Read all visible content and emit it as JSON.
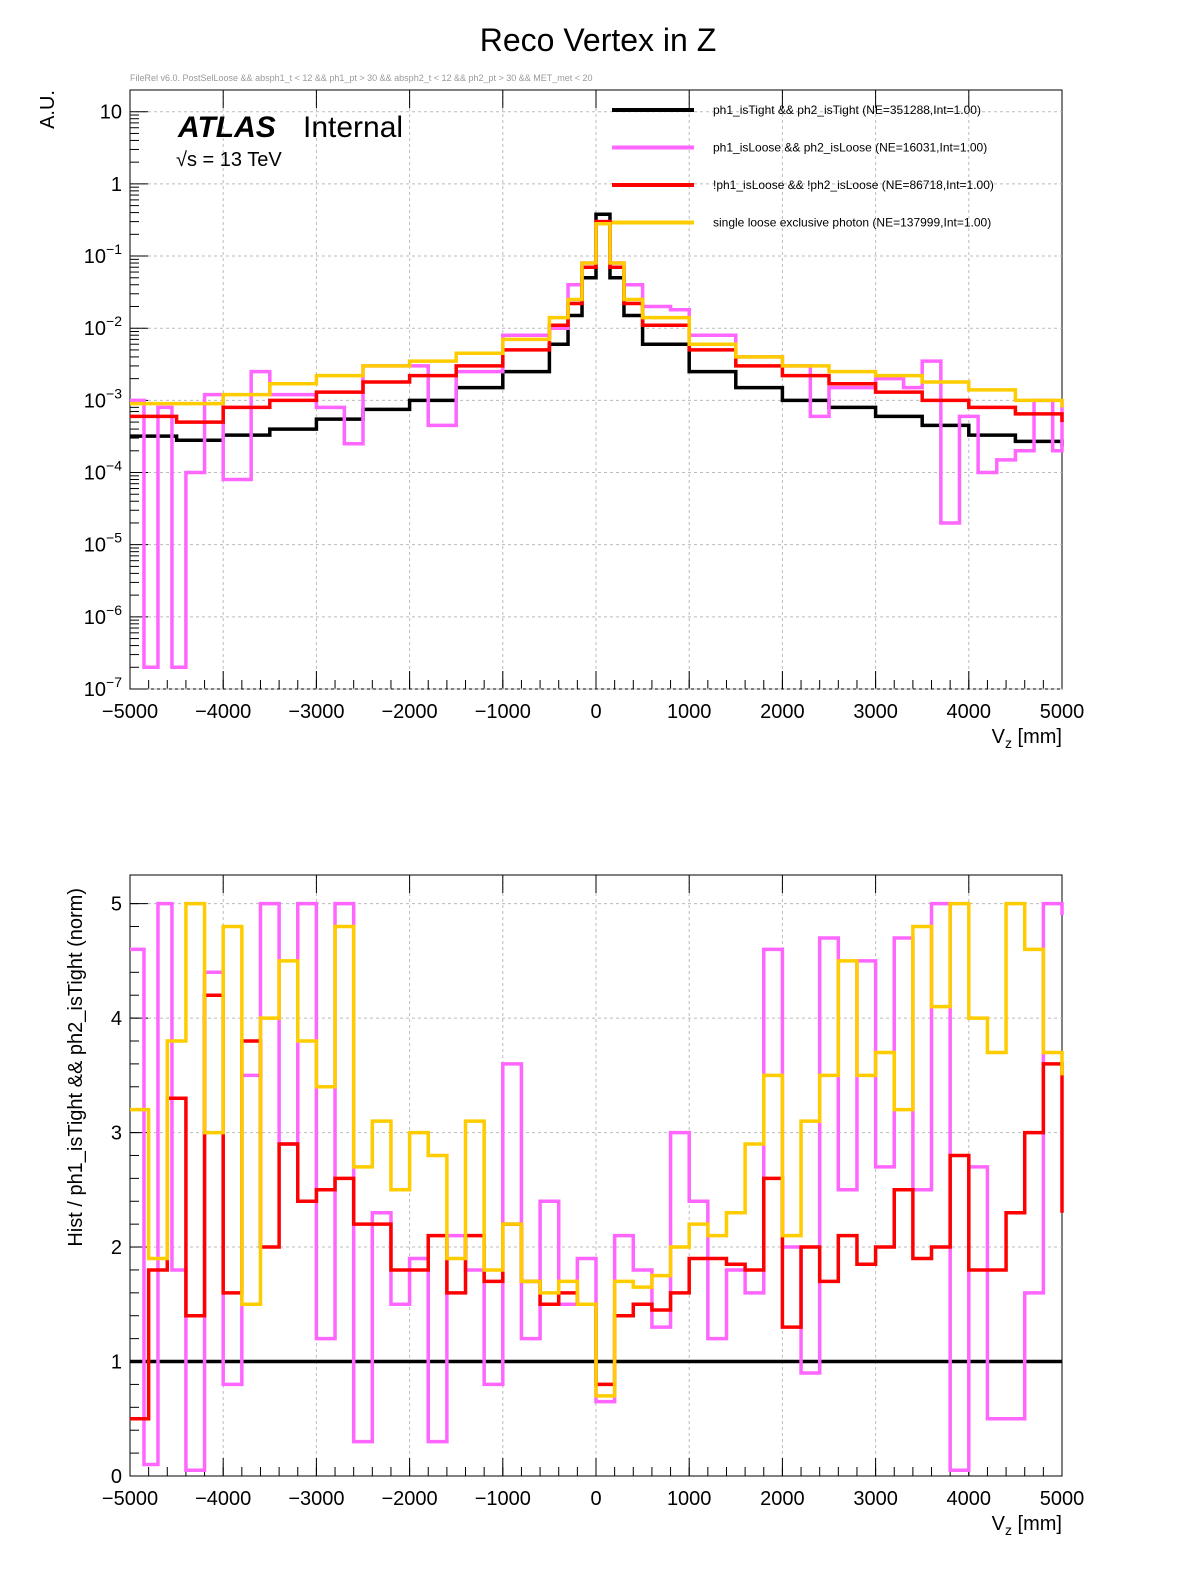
{
  "title": "Reco Vertex in Z",
  "subtitle": "FileRel v6.0. PostSelLoose && absph1_t < 12 && ph1_pt > 30 && absph2_t < 12 && ph2_pt > 30 && MET_met < 20",
  "atlas_label": "ATLAS",
  "atlas_sub": "Internal",
  "energy_label": "√s = 13 TeV",
  "colors": {
    "tight": "#000000",
    "loose": "#ff66ff",
    "notloose": "#ff0000",
    "single": "#ffcc00"
  },
  "chart_data": [
    {
      "type": "line",
      "title": "Reco Vertex in Z",
      "xlabel": "V_z [mm]",
      "ylabel": "A.U.",
      "yscale": "log",
      "xlim": [
        -5000,
        5000
      ],
      "ylim": [
        1e-07,
        20
      ],
      "grid": true,
      "x_ticks": [
        "−5000",
        "−4000",
        "−3000",
        "−2000",
        "−1000",
        "0",
        "1000",
        "2000",
        "3000",
        "4000",
        "5000"
      ],
      "y_ticks": [
        "10^-7",
        "10^-6",
        "10^-5",
        "10^-4",
        "10^-3",
        "10^-2",
        "10^-1",
        "1",
        "10"
      ],
      "legend": "top-right",
      "legend_entries": [
        "ph1_isTight && ph2_isTight (NE=351288,Int=1.00)",
        "ph1_isLoose && ph2_isLoose (NE=16031,Int=1.00)",
        "!ph1_isLoose && !ph2_isLoose (NE=86718,Int=1.00)",
        "single loose exclusive photon (NE=137999,Int=1.00)"
      ],
      "series": [
        {
          "name": "ph1_isTight && ph2_isTight",
          "color": "#000000",
          "x": [
            -5000,
            -4500,
            -4000,
            -3500,
            -3000,
            -2500,
            -2000,
            -1500,
            -1000,
            -500,
            -300,
            -150,
            0,
            150,
            300,
            500,
            1000,
            1500,
            2000,
            2500,
            3000,
            3500,
            4000,
            4500,
            5000
          ],
          "y": [
            0.00032,
            0.00028,
            0.00033,
            0.0004,
            0.00055,
            0.00075,
            0.001,
            0.0015,
            0.0025,
            0.006,
            0.015,
            0.05,
            0.38,
            0.05,
            0.015,
            0.006,
            0.0025,
            0.0015,
            0.001,
            0.0008,
            0.0006,
            0.00045,
            0.00033,
            0.00027,
            0.00023
          ]
        },
        {
          "name": "ph1_isLoose && ph2_isLoose",
          "color": "#ff66ff",
          "x": [
            -5000,
            -4850,
            -4700,
            -4550,
            -4400,
            -4200,
            -4000,
            -3700,
            -3500,
            -3000,
            -2700,
            -2500,
            -2000,
            -1800,
            -1500,
            -1000,
            -500,
            -300,
            -150,
            0,
            150,
            300,
            500,
            800,
            1000,
            1500,
            2000,
            2300,
            2500,
            3000,
            3300,
            3500,
            3700,
            3900,
            4100,
            4300,
            4500,
            4700,
            4900,
            5000
          ],
          "y": [
            0.001,
            2e-07,
            0.0008,
            2e-07,
            0.0001,
            0.0012,
            8e-05,
            0.0025,
            0.0012,
            0.0008,
            0.00025,
            0.003,
            0.003,
            0.00045,
            0.0025,
            0.008,
            0.01,
            0.04,
            0.08,
            0.3,
            0.08,
            0.04,
            0.02,
            0.018,
            0.008,
            0.004,
            0.003,
            0.0006,
            0.0015,
            0.002,
            0.0015,
            0.0035,
            2e-05,
            0.0006,
            0.0001,
            0.00015,
            0.0002,
            0.001,
            0.0002,
            0.001
          ]
        },
        {
          "name": "!ph1_isLoose && !ph2_isLoose",
          "color": "#ff0000",
          "x": [
            -5000,
            -4500,
            -4000,
            -3500,
            -3000,
            -2500,
            -2000,
            -1500,
            -1000,
            -500,
            -300,
            -150,
            0,
            150,
            300,
            500,
            1000,
            1500,
            2000,
            2500,
            3000,
            3500,
            4000,
            4500,
            5000
          ],
          "y": [
            0.0006,
            0.0005,
            0.0008,
            0.001,
            0.0013,
            0.0018,
            0.0022,
            0.003,
            0.005,
            0.011,
            0.022,
            0.07,
            0.3,
            0.07,
            0.022,
            0.011,
            0.005,
            0.003,
            0.0022,
            0.0017,
            0.0013,
            0.001,
            0.0008,
            0.00065,
            0.0005
          ]
        },
        {
          "name": "single loose exclusive photon",
          "color": "#ffcc00",
          "x": [
            -5000,
            -4500,
            -4000,
            -3500,
            -3000,
            -2500,
            -2000,
            -1500,
            -1000,
            -500,
            -300,
            -150,
            0,
            150,
            300,
            500,
            1000,
            1500,
            2000,
            2500,
            3000,
            3500,
            4000,
            4500,
            5000
          ],
          "y": [
            0.0009,
            0.0009,
            0.0012,
            0.0017,
            0.0022,
            0.003,
            0.0035,
            0.0045,
            0.007,
            0.014,
            0.025,
            0.08,
            0.28,
            0.08,
            0.025,
            0.014,
            0.006,
            0.004,
            0.003,
            0.0025,
            0.0022,
            0.0018,
            0.0014,
            0.001,
            0.0008
          ]
        }
      ]
    },
    {
      "type": "line",
      "title": "",
      "xlabel": "V_z [mm]",
      "ylabel": "Hist / ph1_isTight && ph2_isTight (norm)",
      "yscale": "linear",
      "xlim": [
        -5000,
        5000
      ],
      "ylim": [
        0,
        5.25
      ],
      "grid": true,
      "x_ticks": [
        "−5000",
        "−4000",
        "−3000",
        "−2000",
        "−1000",
        "0",
        "1000",
        "2000",
        "3000",
        "4000",
        "5000"
      ],
      "y_ticks": [
        "0",
        "1",
        "2",
        "3",
        "4",
        "5"
      ],
      "series": [
        {
          "name": "ph1_isTight && ph2_isTight",
          "color": "#000000",
          "x": [
            -5000,
            5000
          ],
          "y": [
            1,
            1
          ]
        },
        {
          "name": "ph1_isLoose && ph2_isLoose",
          "color": "#ff66ff",
          "x": [
            -5000,
            -4850,
            -4700,
            -4550,
            -4400,
            -4200,
            -4000,
            -3800,
            -3600,
            -3400,
            -3200,
            -3000,
            -2800,
            -2600,
            -2400,
            -2200,
            -2000,
            -1800,
            -1600,
            -1400,
            -1200,
            -1000,
            -800,
            -600,
            -400,
            -200,
            0,
            200,
            400,
            600,
            800,
            1000,
            1200,
            1400,
            1600,
            1800,
            2000,
            2200,
            2400,
            2600,
            2800,
            3000,
            3200,
            3400,
            3600,
            3800,
            4000,
            4200,
            4400,
            4600,
            4800,
            5000
          ],
          "y": [
            4.6,
            0.1,
            5,
            1.8,
            0.05,
            4.4,
            0.8,
            3.5,
            5,
            2.9,
            5,
            1.2,
            5,
            0.3,
            2.3,
            1.5,
            1.9,
            0.3,
            2.1,
            1.8,
            0.8,
            3.6,
            1.2,
            2.4,
            1.5,
            1.9,
            0.65,
            2.1,
            1.8,
            1.3,
            3,
            2.4,
            1.2,
            1.8,
            1.6,
            4.6,
            2,
            0.9,
            4.7,
            2.5,
            4.5,
            2.7,
            4.7,
            2.5,
            5,
            0.05,
            2.7,
            0.5,
            0.5,
            1.6,
            5,
            4.9
          ]
        },
        {
          "name": "!ph1_isLoose && !ph2_isLoose",
          "color": "#ff0000",
          "x": [
            -5000,
            -4800,
            -4600,
            -4400,
            -4200,
            -4000,
            -3800,
            -3600,
            -3400,
            -3200,
            -3000,
            -2800,
            -2600,
            -2400,
            -2200,
            -2000,
            -1800,
            -1600,
            -1400,
            -1200,
            -1000,
            -800,
            -600,
            -400,
            -200,
            0,
            200,
            400,
            600,
            800,
            1000,
            1200,
            1400,
            1600,
            1800,
            2000,
            2200,
            2400,
            2600,
            2800,
            3000,
            3200,
            3400,
            3600,
            3800,
            4000,
            4200,
            4400,
            4600,
            4800,
            5000
          ],
          "y": [
            0.5,
            1.8,
            3.3,
            1.4,
            4.2,
            1.6,
            3.8,
            2,
            2.9,
            2.4,
            2.5,
            2.6,
            2.2,
            2.2,
            1.8,
            1.8,
            2.1,
            1.6,
            2.1,
            1.7,
            2.2,
            1.7,
            1.5,
            1.6,
            1.5,
            0.8,
            1.4,
            1.5,
            1.45,
            1.6,
            1.9,
            1.9,
            1.85,
            1.8,
            2.6,
            1.3,
            2,
            1.7,
            2.1,
            1.85,
            2,
            2.5,
            1.9,
            2,
            2.8,
            1.8,
            1.8,
            2.3,
            3,
            3.6,
            2.3
          ]
        },
        {
          "name": "single loose exclusive photon",
          "color": "#ffcc00",
          "x": [
            -5000,
            -4800,
            -4600,
            -4400,
            -4200,
            -4000,
            -3800,
            -3600,
            -3400,
            -3200,
            -3000,
            -2800,
            -2600,
            -2400,
            -2200,
            -2000,
            -1800,
            -1600,
            -1400,
            -1200,
            -1000,
            -800,
            -600,
            -400,
            -200,
            0,
            200,
            400,
            600,
            800,
            1000,
            1200,
            1400,
            1600,
            1800,
            2000,
            2200,
            2400,
            2600,
            2800,
            3000,
            3200,
            3400,
            3600,
            3800,
            4000,
            4200,
            4400,
            4600,
            4800,
            5000
          ],
          "y": [
            3.2,
            1.9,
            3.8,
            5,
            3,
            4.8,
            1.5,
            4,
            4.5,
            3.8,
            3.4,
            4.8,
            2.7,
            3.1,
            2.5,
            3,
            2.8,
            1.9,
            3.1,
            1.8,
            2.2,
            1.7,
            1.6,
            1.7,
            1.5,
            0.7,
            1.7,
            1.65,
            1.75,
            2,
            2.2,
            2.1,
            2.3,
            2.9,
            3.5,
            2.1,
            3.1,
            3.5,
            4.5,
            3.5,
            3.7,
            3.2,
            4.8,
            4.1,
            5,
            4,
            3.7,
            5,
            4.6,
            3.7,
            3.5
          ]
        }
      ]
    }
  ]
}
